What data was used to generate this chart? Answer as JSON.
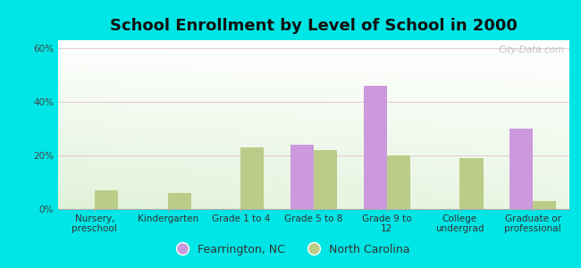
{
  "title": "School Enrollment by Level of School in 2000",
  "categories": [
    "Nursery,\npreschool",
    "Kindergarten",
    "Grade 1 to 4",
    "Grade 5 to 8",
    "Grade 9 to\n12",
    "College\nundergrad",
    "Graduate or\nprofessional"
  ],
  "fearrington": [
    0,
    0,
    0,
    24,
    46,
    0,
    30
  ],
  "north_carolina": [
    7,
    6,
    23,
    22,
    20,
    19,
    3
  ],
  "fearrington_color": "#cc99dd",
  "nc_color": "#bbcc88",
  "background_color": "#00e5e5",
  "yticks": [
    0,
    20,
    40,
    60
  ],
  "ylim": [
    0,
    63
  ],
  "bar_width": 0.32,
  "title_fontsize": 13,
  "tick_fontsize": 7.5,
  "legend_fontsize": 9,
  "watermark": "City-Data.com"
}
